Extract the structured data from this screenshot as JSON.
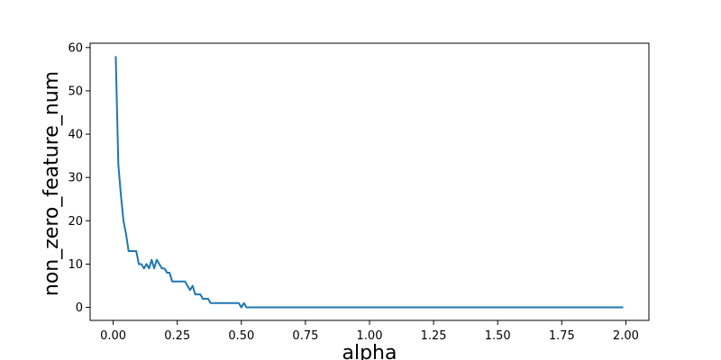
{
  "chart_data": {
    "type": "line",
    "title": "",
    "xlabel": "alpha",
    "ylabel": "non_zero_feature_num",
    "xlim": [
      -0.09,
      2.09
    ],
    "ylim": [
      -3,
      61
    ],
    "xticks": [
      0.0,
      0.25,
      0.5,
      0.75,
      1.0,
      1.25,
      1.5,
      1.75,
      2.0
    ],
    "xtick_labels": [
      "0.00",
      "0.25",
      "0.50",
      "0.75",
      "1.00",
      "1.25",
      "1.50",
      "1.75",
      "2.00"
    ],
    "yticks": [
      0,
      10,
      20,
      30,
      40,
      50,
      60
    ],
    "ytick_labels": [
      "0",
      "10",
      "20",
      "30",
      "40",
      "50",
      "60"
    ],
    "grid": false,
    "series": [
      {
        "color": "#1f77b4",
        "x": [
          0.01,
          0.02,
          0.03,
          0.04,
          0.05,
          0.06,
          0.07,
          0.08,
          0.09,
          0.1,
          0.11,
          0.12,
          0.13,
          0.14,
          0.15,
          0.16,
          0.17,
          0.18,
          0.19,
          0.2,
          0.21,
          0.22,
          0.23,
          0.24,
          0.25,
          0.26,
          0.27,
          0.28,
          0.29,
          0.3,
          0.31,
          0.32,
          0.33,
          0.34,
          0.35,
          0.36,
          0.37,
          0.38,
          0.39,
          0.4,
          0.41,
          0.42,
          0.43,
          0.44,
          0.45,
          0.46,
          0.47,
          0.48,
          0.49,
          0.5,
          0.51,
          0.52,
          0.53,
          1.0,
          1.5,
          1.99
        ],
        "y": [
          58,
          33,
          26,
          20,
          17,
          13,
          13,
          13,
          13,
          10,
          10,
          9,
          10,
          9,
          11,
          9,
          11,
          10,
          9,
          9,
          8,
          8,
          6,
          6,
          6,
          6,
          6,
          6,
          5,
          4,
          5,
          3,
          3,
          3,
          2,
          2,
          2,
          1,
          1,
          1,
          1,
          1,
          1,
          1,
          1,
          1,
          1,
          1,
          1,
          0,
          1,
          0,
          0,
          0,
          0,
          0
        ]
      }
    ]
  }
}
